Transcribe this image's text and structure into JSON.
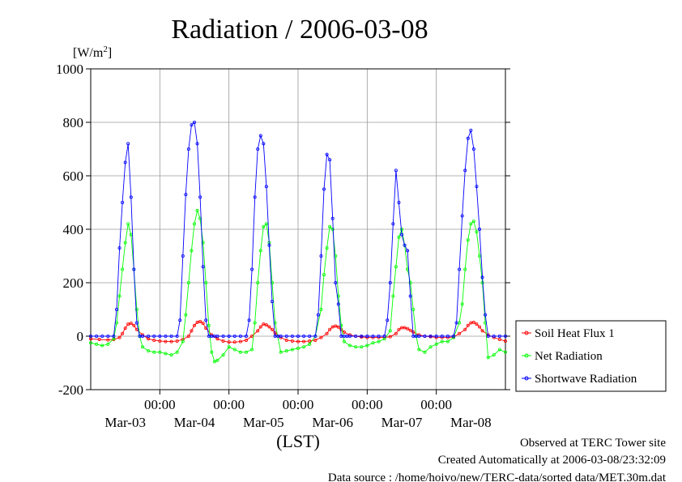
{
  "chart_data": {
    "type": "line",
    "title": "Radiation / 2006-03-08",
    "ylabel": "[W/m²]",
    "ylabel_base": "[W/m",
    "ylabel_sup": "2",
    "ylabel_end": "]",
    "xlabel": "(LST)",
    "ylim": [
      -200,
      1000
    ],
    "yticks": [
      "-200",
      "0",
      "200",
      "400",
      "600",
      "800",
      "1000"
    ],
    "xlim_hours": [
      0,
      144
    ],
    "xticks_time": [
      "00:00",
      "00:00",
      "00:00",
      "00:00",
      "00:00"
    ],
    "xticks_hours": [
      24,
      48,
      72,
      96,
      120
    ],
    "date_labels": [
      "Mar-03",
      "Mar-04",
      "Mar-05",
      "Mar-06",
      "Mar-07",
      "Mar-08"
    ],
    "date_label_hours": [
      12,
      36,
      60,
      84,
      108,
      132
    ],
    "grid": true,
    "legend_position": "right",
    "series": [
      {
        "name": "Soil Heat Flux 1",
        "color": "#ff0000",
        "x": [
          0,
          3,
          6,
          8,
          10,
          11,
          12,
          13,
          14,
          15,
          16,
          18,
          20,
          22,
          24,
          26,
          28,
          30,
          32,
          34,
          35,
          36,
          37,
          38,
          39,
          40,
          42,
          44,
          46,
          48,
          50,
          52,
          54,
          56,
          58,
          59,
          60,
          61,
          62,
          63,
          64,
          66,
          68,
          70,
          72,
          74,
          76,
          78,
          80,
          82,
          83,
          84,
          85,
          86,
          87,
          88,
          90,
          92,
          94,
          96,
          98,
          100,
          102,
          104,
          106,
          107,
          108,
          109,
          110,
          111,
          112,
          114,
          116,
          118,
          120,
          122,
          124,
          126,
          128,
          130,
          131,
          132,
          133,
          134,
          135,
          136,
          138,
          140,
          142,
          144
        ],
        "values": [
          -10,
          -12,
          -14,
          -12,
          -5,
          10,
          30,
          45,
          48,
          40,
          25,
          5,
          -10,
          -15,
          -18,
          -20,
          -20,
          -18,
          -12,
          0,
          20,
          40,
          52,
          55,
          48,
          30,
          5,
          -10,
          -18,
          -22,
          -22,
          -20,
          -15,
          0,
          20,
          35,
          45,
          42,
          35,
          25,
          12,
          -5,
          -15,
          -18,
          -20,
          -20,
          -18,
          -15,
          -5,
          10,
          25,
          35,
          38,
          34,
          25,
          15,
          5,
          0,
          -3,
          -5,
          -5,
          -5,
          -5,
          -2,
          10,
          25,
          32,
          32,
          28,
          22,
          15,
          5,
          0,
          -2,
          -5,
          -5,
          -5,
          -3,
          10,
          25,
          40,
          50,
          52,
          45,
          35,
          20,
          5,
          -5,
          -12,
          -18
        ]
      },
      {
        "name": "Net Radiation",
        "color": "#00ff00",
        "x": [
          0,
          2,
          4,
          6,
          8,
          9,
          10,
          11,
          12,
          13,
          14,
          15,
          16,
          17,
          18,
          20,
          22,
          24,
          26,
          28,
          30,
          32,
          33,
          34,
          35,
          36,
          37,
          38,
          39,
          40,
          41,
          42,
          43,
          44,
          46,
          48,
          50,
          52,
          54,
          56,
          57,
          58,
          59,
          60,
          61,
          62,
          63,
          64,
          66,
          68,
          70,
          72,
          74,
          76,
          78,
          80,
          81,
          82,
          83,
          84,
          85,
          86,
          87,
          88,
          90,
          92,
          94,
          96,
          98,
          100,
          102,
          104,
          105,
          106,
          107,
          108,
          109,
          110,
          111,
          112,
          113,
          114,
          116,
          118,
          120,
          122,
          124,
          126,
          128,
          129,
          130,
          131,
          132,
          133,
          134,
          135,
          136,
          137,
          138,
          140,
          142,
          144
        ],
        "values": [
          -25,
          -30,
          -35,
          -30,
          -10,
          50,
          150,
          250,
          350,
          420,
          380,
          250,
          100,
          0,
          -40,
          -55,
          -60,
          -60,
          -65,
          -70,
          -60,
          -20,
          80,
          200,
          320,
          420,
          470,
          440,
          350,
          200,
          40,
          -60,
          -95,
          -90,
          -70,
          -40,
          -50,
          -60,
          -60,
          -50,
          50,
          200,
          320,
          410,
          420,
          350,
          200,
          50,
          -60,
          -55,
          -50,
          -45,
          -40,
          -30,
          0,
          100,
          230,
          330,
          410,
          400,
          300,
          150,
          40,
          -20,
          -35,
          -40,
          -40,
          -35,
          -25,
          -20,
          -10,
          20,
          150,
          260,
          370,
          400,
          340,
          250,
          200,
          100,
          0,
          -50,
          -60,
          -40,
          -30,
          -20,
          -20,
          -5,
          50,
          120,
          250,
          360,
          420,
          430,
          390,
          300,
          200,
          50,
          -80,
          -70,
          -50,
          -60
        ]
      },
      {
        "name": "Shortwave Radiation",
        "color": "#0000ff",
        "x": [
          0,
          2,
          4,
          6,
          8,
          9,
          10,
          11,
          12,
          13,
          14,
          15,
          16,
          17,
          18,
          20,
          22,
          24,
          26,
          28,
          30,
          31,
          32,
          33,
          34,
          35,
          36,
          37,
          38,
          39,
          40,
          41,
          42,
          43,
          44,
          46,
          48,
          50,
          52,
          54,
          55,
          56,
          57,
          58,
          59,
          60,
          61,
          62,
          63,
          64,
          65,
          66,
          68,
          70,
          72,
          74,
          76,
          78,
          79,
          80,
          81,
          82,
          83,
          84,
          85,
          86,
          87,
          88,
          89,
          90,
          92,
          94,
          96,
          98,
          100,
          102,
          103,
          104,
          105,
          106,
          107,
          108,
          109,
          110,
          111,
          112,
          113,
          114,
          116,
          118,
          120,
          122,
          124,
          126,
          127,
          128,
          129,
          130,
          131,
          132,
          133,
          134,
          135,
          136,
          137,
          138,
          140,
          142,
          144
        ],
        "values": [
          0,
          0,
          0,
          0,
          0,
          100,
          330,
          500,
          650,
          720,
          520,
          250,
          50,
          0,
          0,
          0,
          0,
          0,
          0,
          0,
          0,
          60,
          300,
          530,
          700,
          790,
          800,
          720,
          520,
          260,
          60,
          0,
          0,
          0,
          0,
          0,
          0,
          0,
          0,
          0,
          60,
          250,
          520,
          700,
          750,
          720,
          560,
          340,
          130,
          0,
          0,
          0,
          0,
          0,
          0,
          0,
          0,
          0,
          80,
          300,
          550,
          680,
          660,
          440,
          200,
          120,
          0,
          0,
          0,
          0,
          0,
          0,
          0,
          0,
          0,
          0,
          60,
          200,
          420,
          620,
          500,
          380,
          340,
          320,
          150,
          0,
          0,
          0,
          0,
          0,
          0,
          0,
          0,
          0,
          50,
          250,
          450,
          620,
          740,
          770,
          700,
          560,
          400,
          220,
          80,
          0,
          0,
          0,
          0
        ]
      }
    ]
  },
  "footer": {
    "line1": "Observed at TERC Tower site",
    "line2": "Created Automatically at 2006-03-08/23:32:09",
    "line3": "Data source : /home/hoivo/new/TERC-data/sorted  data/MET.30m.dat"
  }
}
